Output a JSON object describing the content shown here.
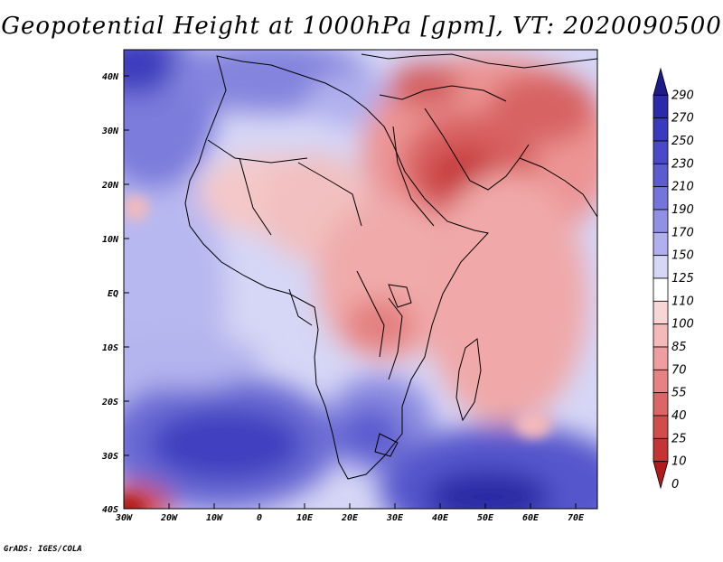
{
  "title": "Geopotential Height at 1000hPa [gpm], VT: 2020090500",
  "credit": "GrADS: IGES/COLA",
  "axes": {
    "lat_labels": [
      "40N",
      "30N",
      "20N",
      "10N",
      "EQ",
      "10S",
      "20S",
      "30S",
      "40S"
    ],
    "lon_labels": [
      "30W",
      "20W",
      "10W",
      "0",
      "10E",
      "20E",
      "30E",
      "40E",
      "50E",
      "60E",
      "70E"
    ]
  },
  "colorbar": {
    "levels": [
      "290",
      "270",
      "250",
      "230",
      "210",
      "190",
      "170",
      "150",
      "125",
      "110",
      "100",
      "85",
      "70",
      "55",
      "40",
      "25",
      "10",
      "0"
    ],
    "colors": [
      "#1e1a8c",
      "#2c2aa8",
      "#3a3abc",
      "#4a4ac8",
      "#5c5cd0",
      "#7474da",
      "#9090e4",
      "#b0b0ee",
      "#d6d6f6",
      "#ffffff",
      "#f8d6d6",
      "#f4baba",
      "#ee9e9e",
      "#e68282",
      "#dc6666",
      "#d24c4c",
      "#c43434",
      "#b01c1c"
    ]
  },
  "chart_data": {
    "type": "heatmap",
    "title": "Geopotential Height at 1000hPa [gpm], VT: 2020090500",
    "variable": "Geopotential Height at 1000hPa",
    "units": "gpm",
    "valid_time": "2020090500",
    "lon_range": [
      -30,
      75
    ],
    "lat_range": [
      -40,
      45
    ],
    "x_ticks": [
      "30W",
      "20W",
      "10W",
      "0",
      "10E",
      "20E",
      "30E",
      "40E",
      "50E",
      "60E",
      "70E"
    ],
    "y_ticks": [
      "40N",
      "30N",
      "20N",
      "10N",
      "EQ",
      "10S",
      "20S",
      "30S",
      "40S"
    ],
    "contour_levels": [
      0,
      10,
      25,
      40,
      55,
      70,
      85,
      100,
      110,
      125,
      150,
      170,
      190,
      210,
      230,
      250,
      270,
      290
    ],
    "features": [
      {
        "name": "low over Arabian Peninsula",
        "lon": 45,
        "lat": 22,
        "value_range": "0-25"
      },
      {
        "name": "high over South Atlantic",
        "lon": -15,
        "lat": -28,
        "value_range": "230-250"
      },
      {
        "name": "high over southern Indian Ocean",
        "lon": 50,
        "lat": -38,
        "value_range": "250-290"
      },
      {
        "name": "low off South America coast",
        "lon": -28,
        "lat": -39,
        "value_range": "0-25"
      }
    ]
  }
}
